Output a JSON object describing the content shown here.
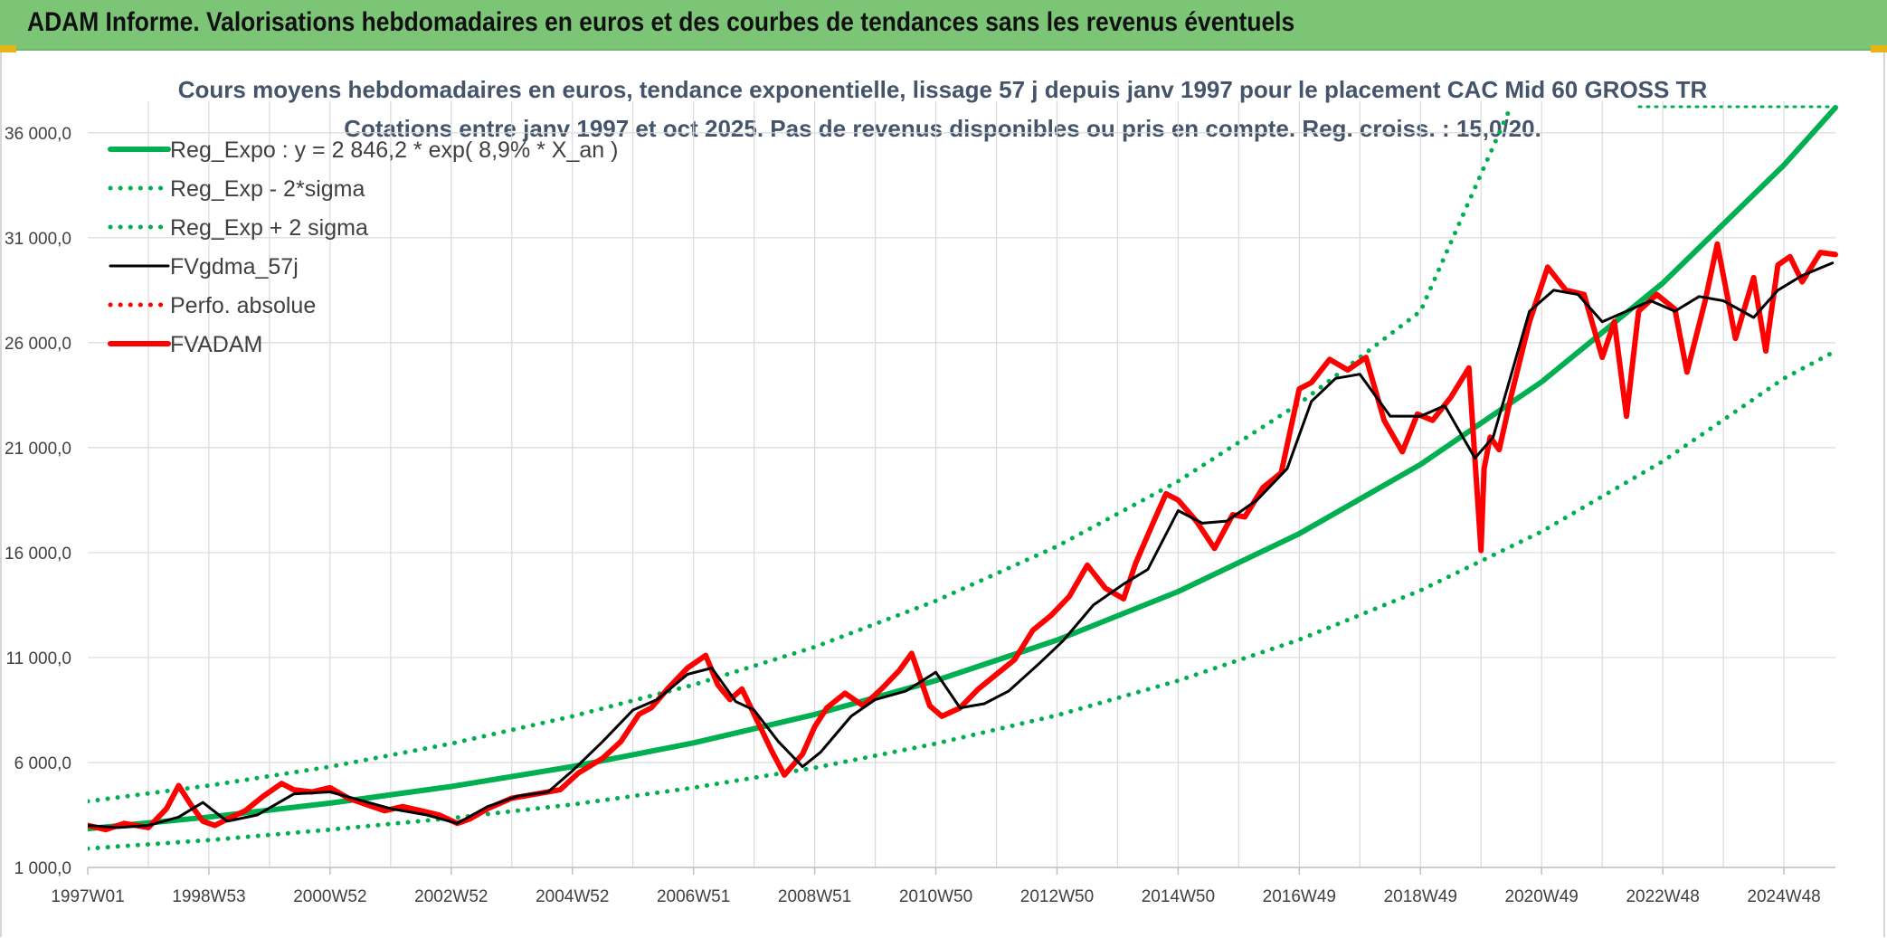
{
  "header": {
    "title": "ADAM Informe. Valorisations hebdomadaires en euros et des courbes de tendances sans les revenus éventuels"
  },
  "colors": {
    "header_bg": "#7cc576",
    "reg_expo": "#00b050",
    "fv_gdma": "#000000",
    "fv_adam": "#ff0000",
    "perfo": "#ff0000",
    "title_text": "#44546a",
    "grid": "#d9d9d9"
  },
  "chart_data": {
    "type": "line",
    "title_line1": "Cours moyens hebdomadaires en euros, tendance exponentielle, lissage 57 j depuis janv 1997 pour le placement CAC Mid 60 GROSS TR",
    "title_line2": "Cotations entre janv 1997 et oct 2025. Pas de revenus disponibles ou pris en compte. Reg. croiss. : 15,0/20.",
    "ylim": [
      1000,
      37500
    ],
    "y_ticks": [
      "1 000,0",
      "6 000,0",
      "11 000,0",
      "16 000,0",
      "21 000,0",
      "26 000,0",
      "31 000,0",
      "36 000,0"
    ],
    "y_tick_values": [
      1000,
      6000,
      11000,
      16000,
      21000,
      26000,
      31000,
      36000
    ],
    "x_ticks": [
      "1997W01",
      "1998W53",
      "2000W52",
      "2002W52",
      "2004W52",
      "2006W51",
      "2008W51",
      "2010W50",
      "2012W50",
      "2014W50",
      "2016W49",
      "2018W49",
      "2020W49",
      "2022W48",
      "2024W48"
    ],
    "x_tick_years": [
      1997.0,
      1999.0,
      2001.0,
      2003.0,
      2005.0,
      2007.0,
      2009.0,
      2011.0,
      2013.0,
      2015.0,
      2017.0,
      2019.0,
      2021.0,
      2023.0,
      2025.0
    ],
    "xlim": [
      1997.0,
      2025.85
    ],
    "grid": true,
    "legend_position": "top-left",
    "regression": {
      "a": 2846.2,
      "rate": 0.089,
      "x0": 1997.0
    },
    "series": [
      {
        "name": "Reg_Expo : y = 2 846,2 * exp( 8,9% *  X_an )",
        "style": "solid-thick",
        "color": "#00b050",
        "x": [
          1997,
          1999,
          2001,
          2003,
          2005,
          2007,
          2009,
          2011,
          2013,
          2015,
          2017,
          2019,
          2021,
          2023,
          2025,
          2025.85
        ],
        "values": [
          2846,
          3401,
          4065,
          4857,
          5804,
          6936,
          8288,
          9904,
          11835,
          14143,
          16900,
          20196,
          24133,
          28839,
          34462,
          37200
        ]
      },
      {
        "name": "Reg_Exp - 2*sigma",
        "style": "dotted",
        "color": "#00b050",
        "x": [
          1997,
          1999,
          2001,
          2003,
          2005,
          2007,
          2009,
          2011,
          2013,
          2015,
          2017,
          2019,
          2021,
          2023,
          2025,
          2025.85
        ],
        "values": [
          1900,
          2300,
          2800,
          3350,
          4000,
          4800,
          5750,
          6900,
          8250,
          9900,
          11850,
          14200,
          17000,
          20350,
          24300,
          25600
        ]
      },
      {
        "name": "Reg_Exp + 2 sigma",
        "style": "dotted",
        "color": "#00b050",
        "x": [
          1997,
          1999,
          2001,
          2003,
          2005,
          2007,
          2009,
          2011,
          2013,
          2015,
          2017,
          2019,
          2020.5
        ],
        "values": [
          4150,
          4900,
          5800,
          6900,
          8200,
          9700,
          11500,
          13700,
          16300,
          19400,
          23100,
          27500,
          37300
        ]
      },
      {
        "name": "FVgdma_57j",
        "style": "solid",
        "color": "#000000",
        "x": [
          1997.0,
          1997.5,
          1998.0,
          1998.5,
          1998.9,
          1999.3,
          1999.8,
          2000.4,
          2001.0,
          2001.5,
          2002.0,
          2002.6,
          2003.1,
          2003.6,
          2004.1,
          2004.6,
          2005.0,
          2005.5,
          2006.0,
          2006.4,
          2006.9,
          2007.3,
          2007.7,
          2008.0,
          2008.4,
          2008.8,
          2009.1,
          2009.6,
          2010.0,
          2010.5,
          2011.0,
          2011.4,
          2011.8,
          2012.2,
          2012.7,
          2013.1,
          2013.6,
          2014.1,
          2014.5,
          2015.0,
          2015.4,
          2015.8,
          2016.3,
          2016.8,
          2017.2,
          2017.6,
          2018.0,
          2018.5,
          2019.0,
          2019.4,
          2019.9,
          2020.2,
          2020.4,
          2020.8,
          2021.2,
          2021.6,
          2022.0,
          2022.4,
          2022.8,
          2023.2,
          2023.6,
          2024.0,
          2024.5,
          2024.9,
          2025.3,
          2025.8
        ],
        "values": [
          3000,
          2900,
          3000,
          3400,
          4100,
          3200,
          3500,
          4500,
          4600,
          4200,
          3800,
          3500,
          3100,
          3900,
          4400,
          4600,
          5600,
          7000,
          8500,
          9000,
          10200,
          10500,
          8900,
          8500,
          7000,
          5800,
          6500,
          8200,
          9000,
          9400,
          10300,
          8600,
          8800,
          9400,
          10700,
          11800,
          13500,
          14500,
          15200,
          18000,
          17400,
          17500,
          18500,
          20000,
          23200,
          24300,
          24500,
          22500,
          22500,
          23000,
          20500,
          21500,
          23500,
          27500,
          28500,
          28300,
          27000,
          27500,
          28000,
          27500,
          28200,
          28000,
          27200,
          28500,
          29200,
          29800
        ]
      },
      {
        "name": "Perfo. absolue",
        "style": "dotted",
        "color": "#ff0000",
        "x": [],
        "values": []
      },
      {
        "name": "FVADAM",
        "style": "solid-thick",
        "color": "#ff0000",
        "x": [
          1997.0,
          1997.3,
          1997.6,
          1998.0,
          1998.3,
          1998.5,
          1998.7,
          1998.9,
          1999.1,
          1999.3,
          1999.6,
          1999.9,
          2000.2,
          2000.4,
          2000.7,
          2001.0,
          2001.3,
          2001.6,
          2001.9,
          2002.2,
          2002.5,
          2002.8,
          2003.1,
          2003.3,
          2003.6,
          2004.0,
          2004.4,
          2004.8,
          2005.1,
          2005.5,
          2005.8,
          2006.1,
          2006.3,
          2006.6,
          2006.9,
          2007.2,
          2007.4,
          2007.6,
          2007.8,
          2008.0,
          2008.3,
          2008.5,
          2008.8,
          2009.0,
          2009.2,
          2009.5,
          2009.8,
          2010.1,
          2010.4,
          2010.6,
          2010.9,
          2011.1,
          2011.4,
          2011.7,
          2012.0,
          2012.3,
          2012.6,
          2012.9,
          2013.2,
          2013.5,
          2013.8,
          2014.1,
          2014.3,
          2014.6,
          2014.8,
          2015.0,
          2015.3,
          2015.6,
          2015.9,
          2016.1,
          2016.4,
          2016.7,
          2017.0,
          2017.2,
          2017.5,
          2017.8,
          2018.1,
          2018.4,
          2018.7,
          2018.95,
          2019.2,
          2019.5,
          2019.8,
          2020.0,
          2020.05,
          2020.15,
          2020.3,
          2020.5,
          2020.8,
          2021.1,
          2021.4,
          2021.7,
          2022.0,
          2022.2,
          2022.4,
          2022.6,
          2022.9,
          2023.2,
          2023.4,
          2023.7,
          2023.9,
          2024.2,
          2024.5,
          2024.7,
          2024.9,
          2025.1,
          2025.3,
          2025.6,
          2025.85
        ],
        "values": [
          3000,
          2800,
          3100,
          2900,
          3800,
          4900,
          4000,
          3200,
          3000,
          3300,
          3700,
          4400,
          5000,
          4700,
          4600,
          4800,
          4300,
          4000,
          3700,
          3900,
          3700,
          3500,
          3100,
          3300,
          3800,
          4300,
          4500,
          4700,
          5500,
          6200,
          7000,
          8300,
          8600,
          9600,
          10500,
          11100,
          9700,
          9000,
          9500,
          8300,
          6500,
          5400,
          6400,
          7700,
          8600,
          9300,
          8700,
          9500,
          10400,
          11200,
          8700,
          8200,
          8600,
          9500,
          10200,
          10900,
          12300,
          13000,
          13900,
          15400,
          14300,
          13800,
          15500,
          17500,
          18800,
          18500,
          17500,
          16200,
          17800,
          17700,
          19100,
          19800,
          23800,
          24100,
          25200,
          24700,
          25300,
          22300,
          20800,
          22600,
          22300,
          23400,
          24800,
          16100,
          20000,
          21500,
          20900,
          23500,
          27000,
          29600,
          28500,
          28300,
          25300,
          27000,
          22500,
          27500,
          28300,
          27600,
          24600,
          28000,
          30700,
          26200,
          29100,
          25600,
          29700,
          30100,
          28900,
          30300,
          30200
        ]
      }
    ]
  }
}
